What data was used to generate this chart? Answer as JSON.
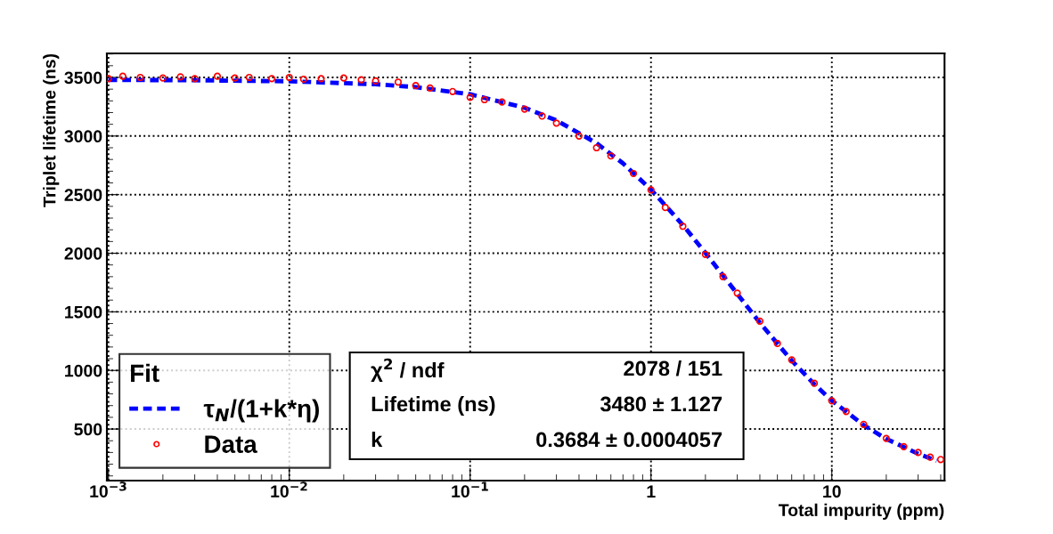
{
  "chart_data": {
    "type": "scatter",
    "xlabel": "Total impurity (ppm)",
    "ylabel": "Triplet lifetime (ns)",
    "log": "x",
    "xlim": [
      0.00098,
      42
    ],
    "ylim": [
      60,
      3705
    ],
    "xticks": [
      {
        "value": 0.001,
        "label": "10$^{−3}$"
      },
      {
        "value": 0.01,
        "label": "10$^{−2}$"
      },
      {
        "value": 0.1,
        "label": "10$^{−1}$"
      },
      {
        "value": 1,
        "label": "1"
      },
      {
        "value": 10,
        "label": "10"
      }
    ],
    "yticks": [
      500,
      1000,
      1500,
      2000,
      2500,
      3000,
      3500
    ],
    "grid": true,
    "legend": "bottom left",
    "legend_title": "Fit",
    "series": [
      {
        "name": "τ$_{N}$/(1+k*η)",
        "type": "line",
        "color": "#0000ff",
        "line_style": "dashed",
        "marker": "none",
        "x": [
          0.001,
          0.003,
          0.01,
          0.03,
          0.05,
          0.1,
          0.2,
          0.3,
          0.5,
          0.7,
          1,
          1.5,
          2,
          3,
          4,
          6,
          8,
          10,
          15,
          20,
          30,
          38
        ],
        "values": [
          3479,
          3476,
          3467,
          3442,
          3417,
          3356,
          3241,
          3134,
          2939,
          2767,
          2543,
          2241,
          2003,
          1653,
          1407,
          1084,
          882,
          743,
          533,
          416,
          289,
          230
        ]
      },
      {
        "name": "Data",
        "color": "#ff0000",
        "marker": "circle",
        "x": [
          0.001,
          0.0012,
          0.0015,
          0.002,
          0.0025,
          0.003,
          0.004,
          0.005,
          0.006,
          0.008,
          0.01,
          0.012,
          0.015,
          0.02,
          0.025,
          0.03,
          0.04,
          0.05,
          0.06,
          0.08,
          0.1,
          0.12,
          0.15,
          0.2,
          0.25,
          0.3,
          0.4,
          0.5,
          0.6,
          0.8,
          1,
          1.2,
          1.5,
          2,
          2.5,
          3,
          4,
          5,
          6,
          8,
          10,
          12,
          15,
          20,
          25,
          30,
          35,
          40
        ],
        "values": [
          3490,
          3510,
          3500,
          3495,
          3505,
          3490,
          3510,
          3495,
          3500,
          3490,
          3500,
          3485,
          3490,
          3495,
          3480,
          3470,
          3460,
          3430,
          3410,
          3380,
          3330,
          3310,
          3290,
          3230,
          3170,
          3110,
          3000,
          2900,
          2830,
          2680,
          2540,
          2390,
          2230,
          1990,
          1800,
          1660,
          1420,
          1230,
          1090,
          890,
          740,
          650,
          540,
          420,
          350,
          300,
          260,
          240
        ]
      }
    ],
    "annotations": [
      "χ$^{2}$ / ndf",
      "2078 / 151",
      "Lifetime (ns)",
      "3480 ± 1.127",
      "k",
      "0.3684 ± 0.0004057"
    ]
  }
}
